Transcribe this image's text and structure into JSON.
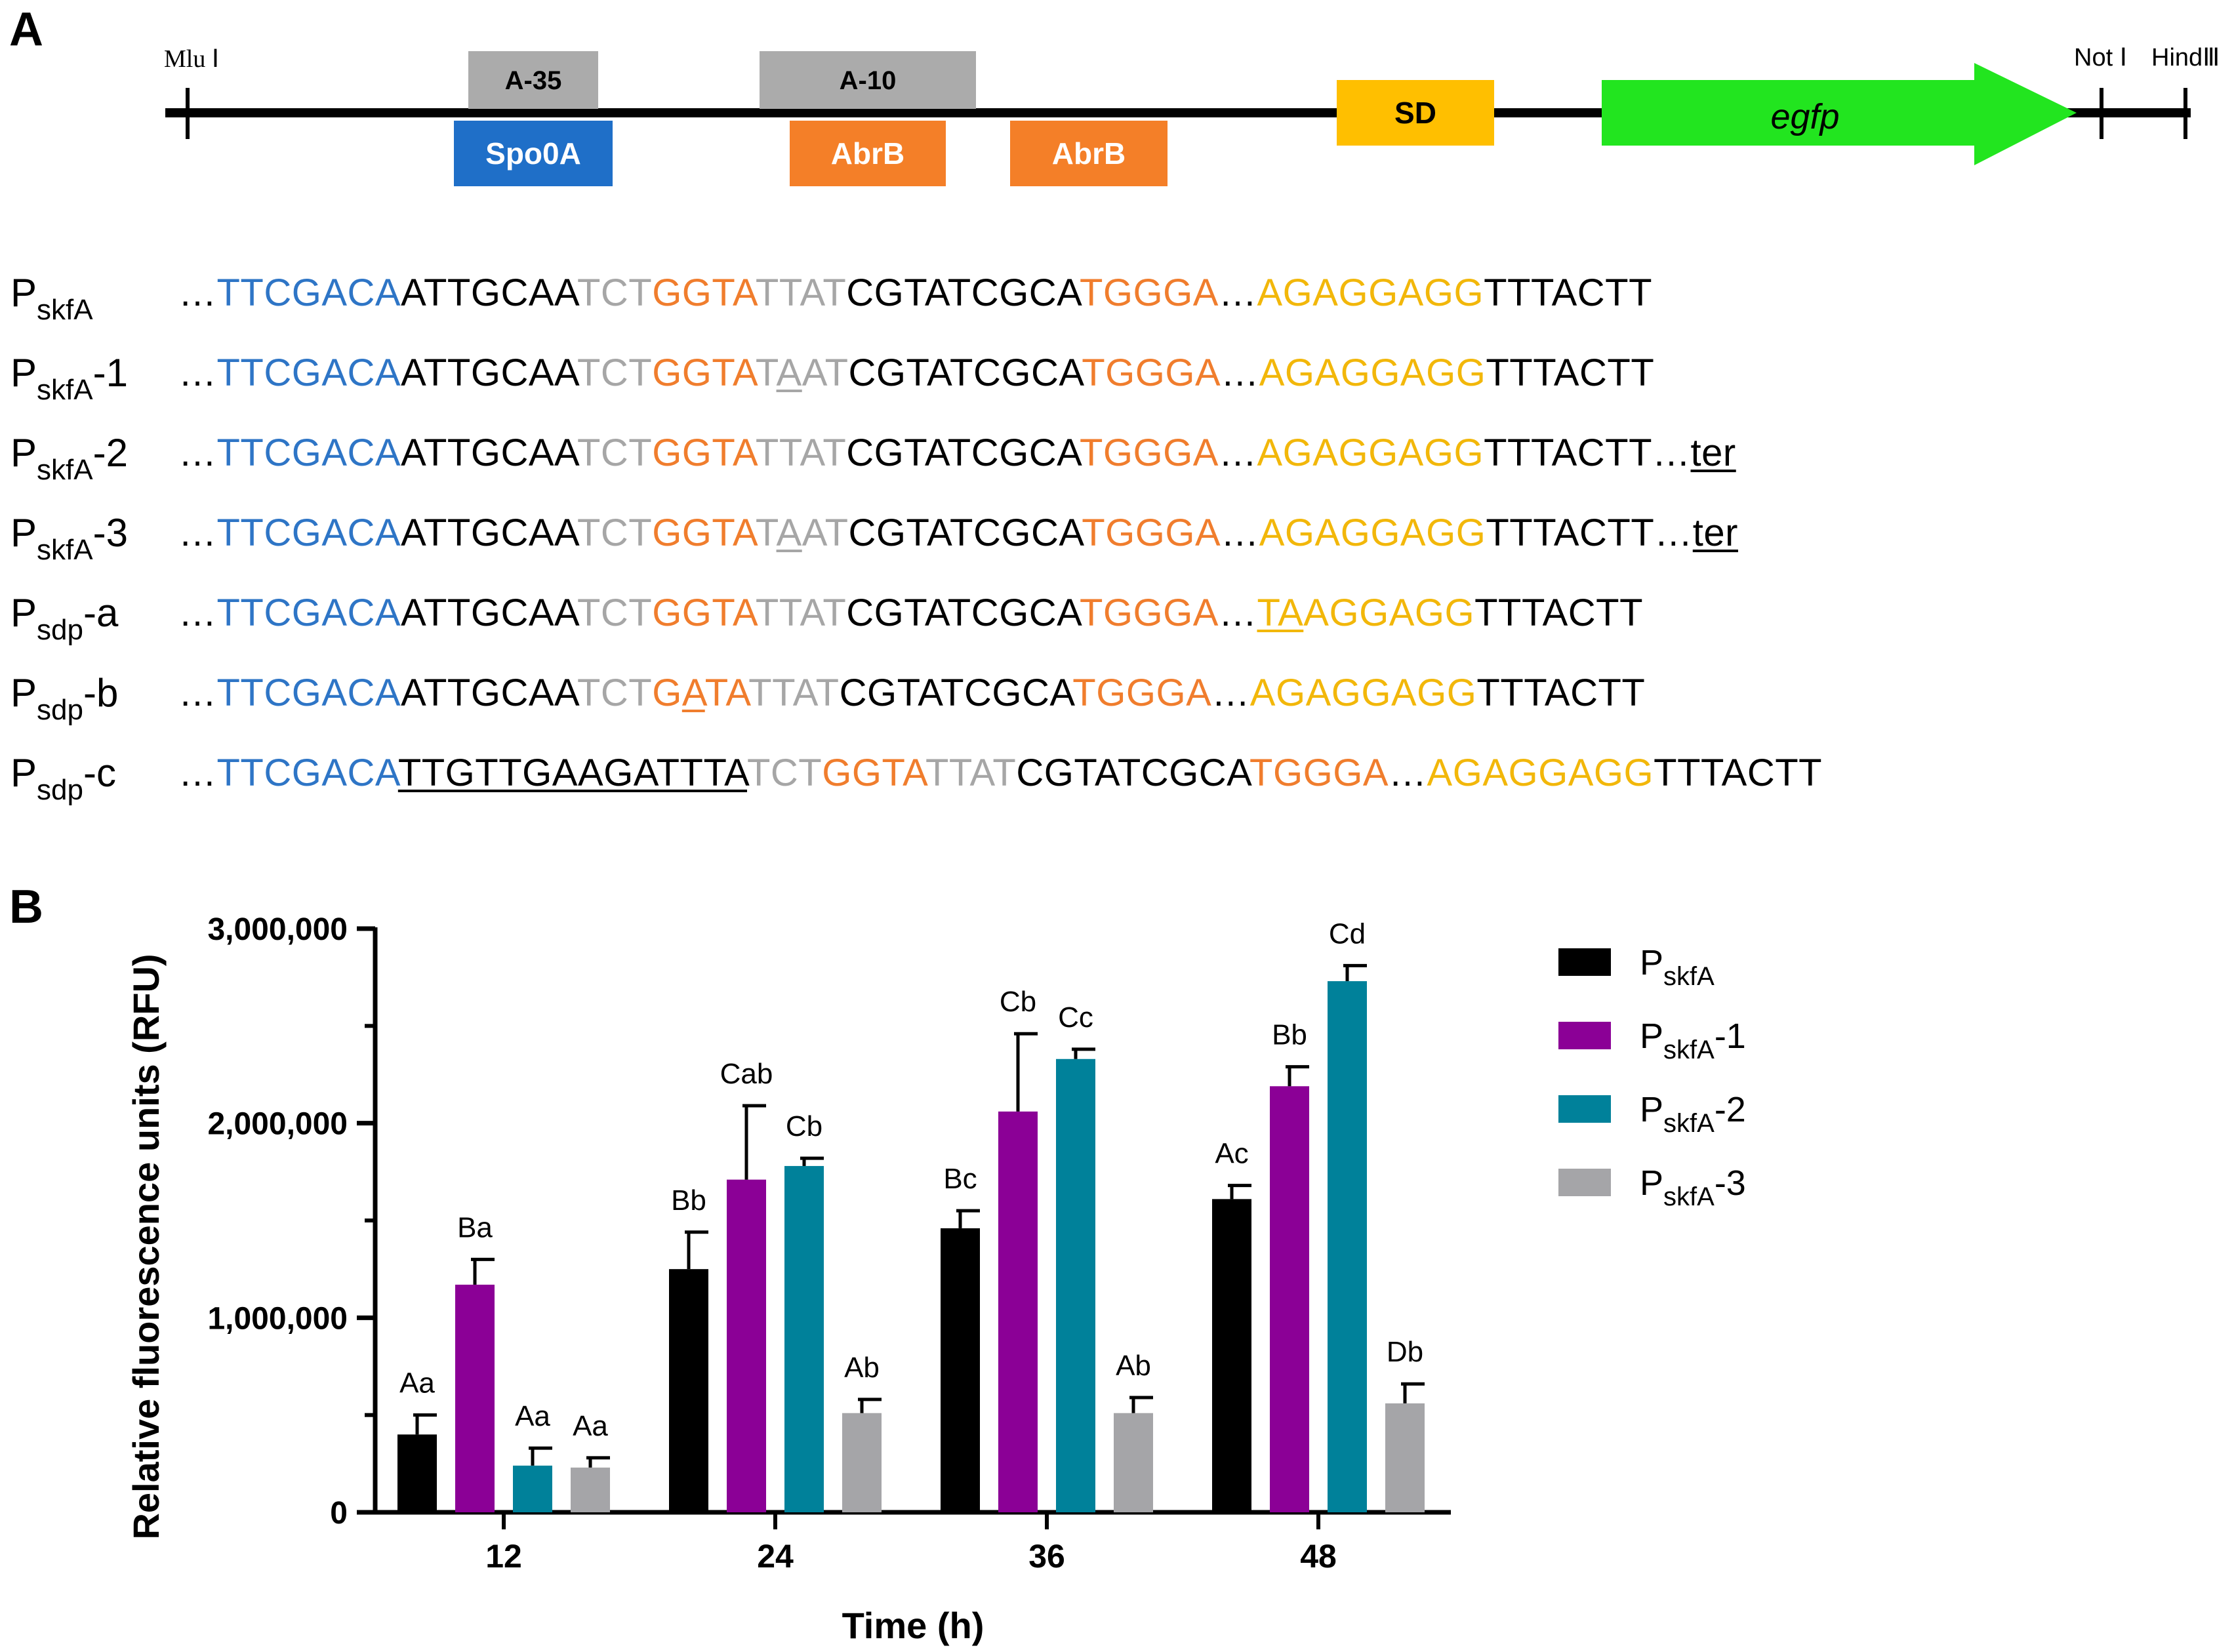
{
  "panel_a": {
    "label": "A",
    "map": {
      "sites_left": "Mlu Ⅰ",
      "sites_right_1": "Not Ⅰ",
      "sites_right_2": "HindⅢ",
      "boxes": {
        "a35": "A-35",
        "a10": "A-10",
        "spo0a": "Spo0A",
        "abrb1": "AbrB",
        "abrb2": "AbrB",
        "sd": "SD",
        "egfp": "egfp"
      },
      "colors": {
        "gray_box": "#ababab",
        "spo0a": "#1f6fc8",
        "abrb": "#f47f28",
        "sd": "#ffbf00",
        "egfp": "#22e51f"
      }
    },
    "sequences": [
      {
        "name": "P",
        "sub": "skfA",
        "suffix": "",
        "segments": [
          {
            "text": "…",
            "color": "black"
          },
          {
            "text": "TTCGACA",
            "color": "blue"
          },
          {
            "text": "ATTGCAA",
            "color": "black"
          },
          {
            "text": "TCT",
            "color": "gray"
          },
          {
            "text": "GGTA",
            "color": "orange"
          },
          {
            "text": "TTAT",
            "color": "gray"
          },
          {
            "text": "CGTATCGCA",
            "color": "black"
          },
          {
            "text": "TGGGA",
            "color": "orange"
          },
          {
            "text": "…",
            "color": "black"
          },
          {
            "text": "AGAGGAGG",
            "color": "yellow"
          },
          {
            "text": "TTTACTT",
            "color": "black"
          }
        ]
      },
      {
        "name": "P",
        "sub": "skfA",
        "suffix": "-1",
        "segments": [
          {
            "text": "…",
            "color": "black"
          },
          {
            "text": "TTCGACA",
            "color": "blue"
          },
          {
            "text": "ATTGCAA",
            "color": "black"
          },
          {
            "text": "TCT",
            "color": "gray"
          },
          {
            "text": "GGTA",
            "color": "orange"
          },
          {
            "text": "T",
            "color": "gray"
          },
          {
            "text": "A",
            "color": "gray",
            "underline": true
          },
          {
            "text": "AT",
            "color": "gray"
          },
          {
            "text": "CGTATCGCA",
            "color": "black"
          },
          {
            "text": "TGGGA",
            "color": "orange"
          },
          {
            "text": "…",
            "color": "black"
          },
          {
            "text": "AGAGGAGG",
            "color": "yellow"
          },
          {
            "text": "TTTACTT",
            "color": "black"
          }
        ]
      },
      {
        "name": "P",
        "sub": "skfA",
        "suffix": "-2",
        "segments": [
          {
            "text": "…",
            "color": "black"
          },
          {
            "text": "TTCGACA",
            "color": "blue"
          },
          {
            "text": "ATTGCAA",
            "color": "black"
          },
          {
            "text": "TCT",
            "color": "gray"
          },
          {
            "text": "GGTA",
            "color": "orange"
          },
          {
            "text": "TTAT",
            "color": "gray"
          },
          {
            "text": "CGTATCGCA",
            "color": "black"
          },
          {
            "text": "TGGGA",
            "color": "orange"
          },
          {
            "text": "…",
            "color": "black"
          },
          {
            "text": "AGAGGAGG",
            "color": "yellow"
          },
          {
            "text": "TTTACTT…",
            "color": "black"
          },
          {
            "text": "ter",
            "color": "black",
            "underline": true
          }
        ]
      },
      {
        "name": "P",
        "sub": "skfA",
        "suffix": "-3",
        "segments": [
          {
            "text": "…",
            "color": "black"
          },
          {
            "text": "TTCGACA",
            "color": "blue"
          },
          {
            "text": "ATTGCAA",
            "color": "black"
          },
          {
            "text": "TCT",
            "color": "gray"
          },
          {
            "text": "GGTA",
            "color": "orange"
          },
          {
            "text": "T",
            "color": "gray"
          },
          {
            "text": "A",
            "color": "gray",
            "underline": true
          },
          {
            "text": "AT",
            "color": "gray"
          },
          {
            "text": "CGTATCGCA",
            "color": "black"
          },
          {
            "text": "TGGGA",
            "color": "orange"
          },
          {
            "text": "…",
            "color": "black"
          },
          {
            "text": "AGAGGAGG",
            "color": "yellow"
          },
          {
            "text": "TTTACTT…",
            "color": "black"
          },
          {
            "text": "ter",
            "color": "black",
            "underline": true
          }
        ]
      },
      {
        "name": "P",
        "sub": "sdp",
        "suffix": "-a",
        "segments": [
          {
            "text": "…",
            "color": "black"
          },
          {
            "text": "TTCGACA",
            "color": "blue"
          },
          {
            "text": "ATTGCAA",
            "color": "black"
          },
          {
            "text": "TCT",
            "color": "gray"
          },
          {
            "text": "GGTA",
            "color": "orange"
          },
          {
            "text": "TTAT",
            "color": "gray"
          },
          {
            "text": "CGTATCGCA",
            "color": "black"
          },
          {
            "text": "TGGGA",
            "color": "orange"
          },
          {
            "text": "…",
            "color": "black"
          },
          {
            "text": "TA",
            "color": "yellow",
            "underline": true
          },
          {
            "text": "AGGAGG",
            "color": "yellow"
          },
          {
            "text": "TTTACTT",
            "color": "black"
          }
        ]
      },
      {
        "name": "P",
        "sub": "sdp",
        "suffix": "-b",
        "segments": [
          {
            "text": "…",
            "color": "black"
          },
          {
            "text": "TTCGACA",
            "color": "blue"
          },
          {
            "text": "ATTGCAA",
            "color": "black"
          },
          {
            "text": "TCT",
            "color": "gray"
          },
          {
            "text": "G",
            "color": "orange"
          },
          {
            "text": "A",
            "color": "orange",
            "underline": true
          },
          {
            "text": "TA",
            "color": "orange"
          },
          {
            "text": "TTAT",
            "color": "gray"
          },
          {
            "text": "CGTATCGCA",
            "color": "black"
          },
          {
            "text": "TGGGA",
            "color": "orange"
          },
          {
            "text": "…",
            "color": "black"
          },
          {
            "text": "AGAGGAGG",
            "color": "yellow"
          },
          {
            "text": "TTTACTT",
            "color": "black"
          }
        ]
      },
      {
        "name": "P",
        "sub": "sdp",
        "suffix": "-c",
        "segments": [
          {
            "text": "…",
            "color": "black"
          },
          {
            "text": "TTCGACA",
            "color": "blue"
          },
          {
            "text": "TTGTTGAAGATTTA",
            "color": "black",
            "underline": true
          },
          {
            "text": "TCT",
            "color": "gray"
          },
          {
            "text": "GGTA",
            "color": "orange"
          },
          {
            "text": "TTAT",
            "color": "gray"
          },
          {
            "text": "CGTATCGCA",
            "color": "black"
          },
          {
            "text": "TGGGA",
            "color": "orange"
          },
          {
            "text": "…",
            "color": "black"
          },
          {
            "text": "AGAGGAGG",
            "color": "yellow"
          },
          {
            "text": "TTTACTT",
            "color": "black"
          }
        ]
      }
    ]
  },
  "panel_b": {
    "label": "B"
  },
  "chart_data": {
    "type": "bar",
    "title": "",
    "xlabel": "Time (h)",
    "ylabel": "Relative fluorescence units (RFU)",
    "ylim": [
      0,
      3000000
    ],
    "yticks": [
      0,
      1000000,
      2000000,
      3000000
    ],
    "ytick_labels": [
      "0",
      "1,000,000",
      "2,000,000",
      "3,000,000"
    ],
    "categories": [
      "12",
      "24",
      "36",
      "48"
    ],
    "legend_position": "right",
    "series": [
      {
        "name": "P",
        "name_sub": "skfA",
        "name_suffix": "",
        "color": "#000000",
        "values": [
          400000,
          1250000,
          1460000,
          1610000
        ],
        "errors": [
          100000,
          190000,
          90000,
          70000
        ],
        "labels": [
          "Aa",
          "Bb",
          "Bc",
          "Ac"
        ]
      },
      {
        "name": "P",
        "name_sub": "skfA",
        "name_suffix": "-1",
        "color": "#8b0096",
        "values": [
          1170000,
          1710000,
          2060000,
          2190000
        ],
        "errors": [
          130000,
          380000,
          400000,
          100000
        ],
        "labels": [
          "Ba",
          "Cab",
          "Cb",
          "Bb"
        ]
      },
      {
        "name": "P",
        "name_sub": "skfA",
        "name_suffix": "-2",
        "color": "#00819a",
        "values": [
          240000,
          1780000,
          2330000,
          2730000
        ],
        "errors": [
          90000,
          40000,
          50000,
          80000
        ],
        "labels": [
          "Aa",
          "Cb",
          "Cc",
          "Cd"
        ]
      },
      {
        "name": "P",
        "name_sub": "skfA",
        "name_suffix": "-3",
        "color": "#a5a5a8",
        "values": [
          230000,
          510000,
          510000,
          560000
        ],
        "errors": [
          50000,
          70000,
          80000,
          100000
        ],
        "labels": [
          "Aa",
          "Ab",
          "Ab",
          "Db"
        ]
      }
    ]
  }
}
